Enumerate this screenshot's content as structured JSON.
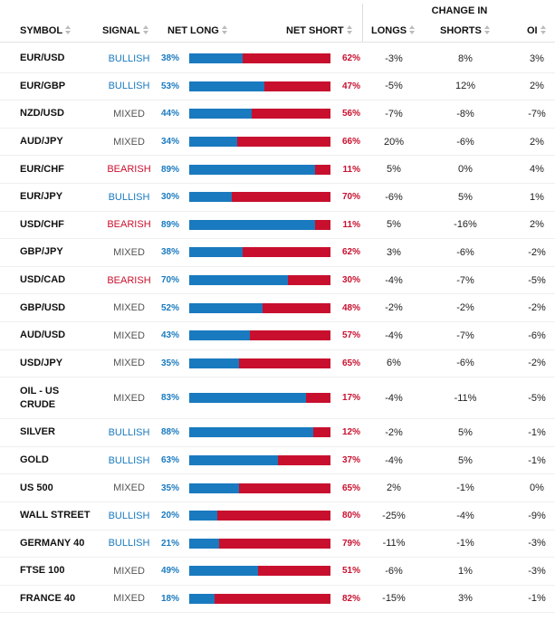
{
  "header": {
    "change_in": "CHANGE IN",
    "symbol": "SYMBOL",
    "signal": "SIGNAL",
    "net_long": "NET LONG",
    "net_short": "NET SHORT",
    "longs": "LONGS",
    "shorts": "SHORTS",
    "oi": "OI"
  },
  "colors": {
    "long": "#1a7abf",
    "short": "#c8102e",
    "bullish": "#1a7abf",
    "bearish": "#c8102e",
    "mixed": "#555555"
  },
  "rows": [
    {
      "symbol": "EUR/USD",
      "signal": "BULLISH",
      "net_long": "38%",
      "net_short": "62%",
      "longs": "-3%",
      "shorts": "8%",
      "oi": "3%"
    },
    {
      "symbol": "EUR/GBP",
      "signal": "BULLISH",
      "net_long": "53%",
      "net_short": "47%",
      "longs": "-5%",
      "shorts": "12%",
      "oi": "2%"
    },
    {
      "symbol": "NZD/USD",
      "signal": "MIXED",
      "net_long": "44%",
      "net_short": "56%",
      "longs": "-7%",
      "shorts": "-8%",
      "oi": "-7%"
    },
    {
      "symbol": "AUD/JPY",
      "signal": "MIXED",
      "net_long": "34%",
      "net_short": "66%",
      "longs": "20%",
      "shorts": "-6%",
      "oi": "2%"
    },
    {
      "symbol": "EUR/CHF",
      "signal": "BEARISH",
      "net_long": "89%",
      "net_short": "11%",
      "longs": "5%",
      "shorts": "0%",
      "oi": "4%"
    },
    {
      "symbol": "EUR/JPY",
      "signal": "BULLISH",
      "net_long": "30%",
      "net_short": "70%",
      "longs": "-6%",
      "shorts": "5%",
      "oi": "1%"
    },
    {
      "symbol": "USD/CHF",
      "signal": "BEARISH",
      "net_long": "89%",
      "net_short": "11%",
      "longs": "5%",
      "shorts": "-16%",
      "oi": "2%"
    },
    {
      "symbol": "GBP/JPY",
      "signal": "MIXED",
      "net_long": "38%",
      "net_short": "62%",
      "longs": "3%",
      "shorts": "-6%",
      "oi": "-2%"
    },
    {
      "symbol": "USD/CAD",
      "signal": "BEARISH",
      "net_long": "70%",
      "net_short": "30%",
      "longs": "-4%",
      "shorts": "-7%",
      "oi": "-5%"
    },
    {
      "symbol": "GBP/USD",
      "signal": "MIXED",
      "net_long": "52%",
      "net_short": "48%",
      "longs": "-2%",
      "shorts": "-2%",
      "oi": "-2%"
    },
    {
      "symbol": "AUD/USD",
      "signal": "MIXED",
      "net_long": "43%",
      "net_short": "57%",
      "longs": "-4%",
      "shorts": "-7%",
      "oi": "-6%"
    },
    {
      "symbol": "USD/JPY",
      "signal": "MIXED",
      "net_long": "35%",
      "net_short": "65%",
      "longs": "6%",
      "shorts": "-6%",
      "oi": "-2%"
    },
    {
      "symbol": "OIL - US CRUDE",
      "signal": "MIXED",
      "net_long": "83%",
      "net_short": "17%",
      "longs": "-4%",
      "shorts": "-11%",
      "oi": "-5%"
    },
    {
      "symbol": "SILVER",
      "signal": "BULLISH",
      "net_long": "88%",
      "net_short": "12%",
      "longs": "-2%",
      "shorts": "5%",
      "oi": "-1%"
    },
    {
      "symbol": "GOLD",
      "signal": "BULLISH",
      "net_long": "63%",
      "net_short": "37%",
      "longs": "-4%",
      "shorts": "5%",
      "oi": "-1%"
    },
    {
      "symbol": "US 500",
      "signal": "MIXED",
      "net_long": "35%",
      "net_short": "65%",
      "longs": "2%",
      "shorts": "-1%",
      "oi": "0%"
    },
    {
      "symbol": "WALL STREET",
      "signal": "BULLISH",
      "net_long": "20%",
      "net_short": "80%",
      "longs": "-25%",
      "shorts": "-4%",
      "oi": "-9%"
    },
    {
      "symbol": "GERMANY 40",
      "signal": "BULLISH",
      "net_long": "21%",
      "net_short": "79%",
      "longs": "-11%",
      "shorts": "-1%",
      "oi": "-3%"
    },
    {
      "symbol": "FTSE 100",
      "signal": "MIXED",
      "net_long": "49%",
      "net_short": "51%",
      "longs": "-6%",
      "shorts": "1%",
      "oi": "-3%"
    },
    {
      "symbol": "FRANCE 40",
      "signal": "MIXED",
      "net_long": "18%",
      "net_short": "82%",
      "longs": "-15%",
      "shorts": "3%",
      "oi": "-1%"
    }
  ]
}
